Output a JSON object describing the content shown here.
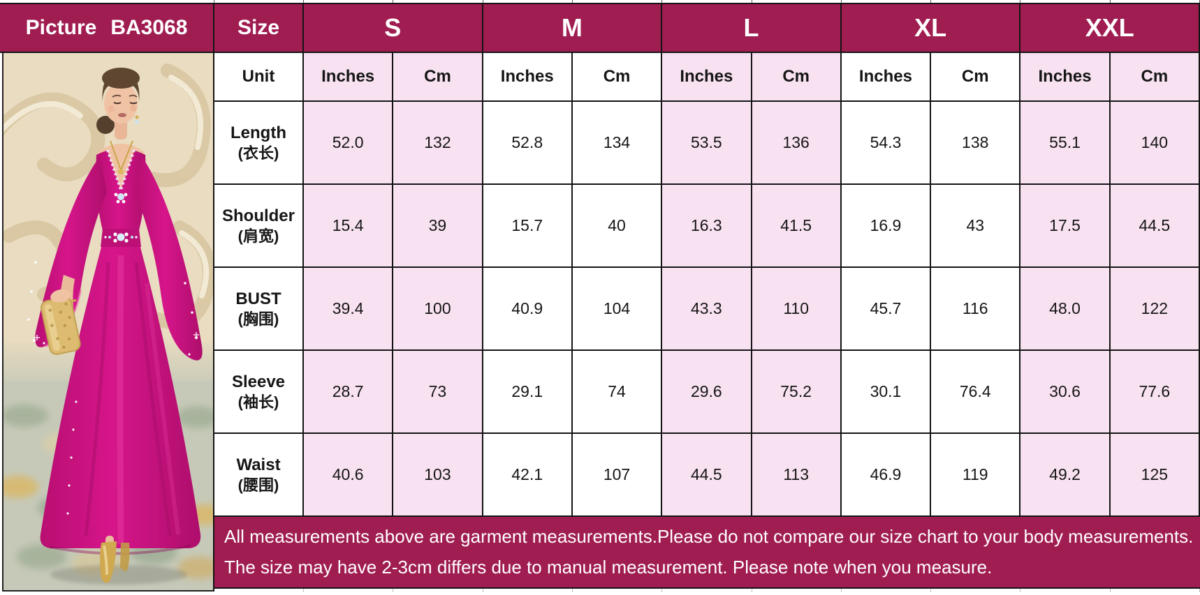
{
  "header": {
    "picture_label": "Picture",
    "product_code": "BA3068",
    "size_label": "Size",
    "sizes": [
      "S",
      "M",
      "L",
      "XL",
      "XXL"
    ]
  },
  "unit_row": {
    "label": "Unit",
    "inches": "Inches",
    "cm": "Cm"
  },
  "measurements": {
    "rows": [
      {
        "name_en": "Length",
        "name_zh": "(衣长)",
        "values": [
          "52.0",
          "132",
          "52.8",
          "134",
          "53.5",
          "136",
          "54.3",
          "138",
          "55.1",
          "140"
        ]
      },
      {
        "name_en": "Shoulder",
        "name_zh": "(肩宽)",
        "values": [
          "15.4",
          "39",
          "15.7",
          "40",
          "16.3",
          "41.5",
          "16.9",
          "43",
          "17.5",
          "44.5"
        ]
      },
      {
        "name_en": "BUST",
        "name_zh": "(胸围)",
        "values": [
          "39.4",
          "100",
          "40.9",
          "104",
          "43.3",
          "110",
          "45.7",
          "116",
          "48.0",
          "122"
        ]
      },
      {
        "name_en": "Sleeve",
        "name_zh": "(袖长)",
        "values": [
          "28.7",
          "73",
          "29.1",
          "74",
          "29.6",
          "75.2",
          "30.1",
          "76.4",
          "30.6",
          "77.6"
        ]
      },
      {
        "name_en": "Waist",
        "name_zh": "(腰围)",
        "values": [
          "40.6",
          "103",
          "42.1",
          "107",
          "44.5",
          "113",
          "46.9",
          "119",
          "49.2",
          "125"
        ]
      }
    ]
  },
  "notes": {
    "line1": "All measurements above are garment measurements.Please do not compare our size chart to your body measurements.",
    "line2": "The size may have 2-3cm differs due to manual measurement. Please note when you measure."
  },
  "colors": {
    "header_bg": "#A01D52",
    "pink_cell": "#F8E1F0",
    "cell_bg": "#FFFFFF",
    "border": "#141414",
    "note_text": "#FFFFFF",
    "dress": "#CB1280"
  }
}
